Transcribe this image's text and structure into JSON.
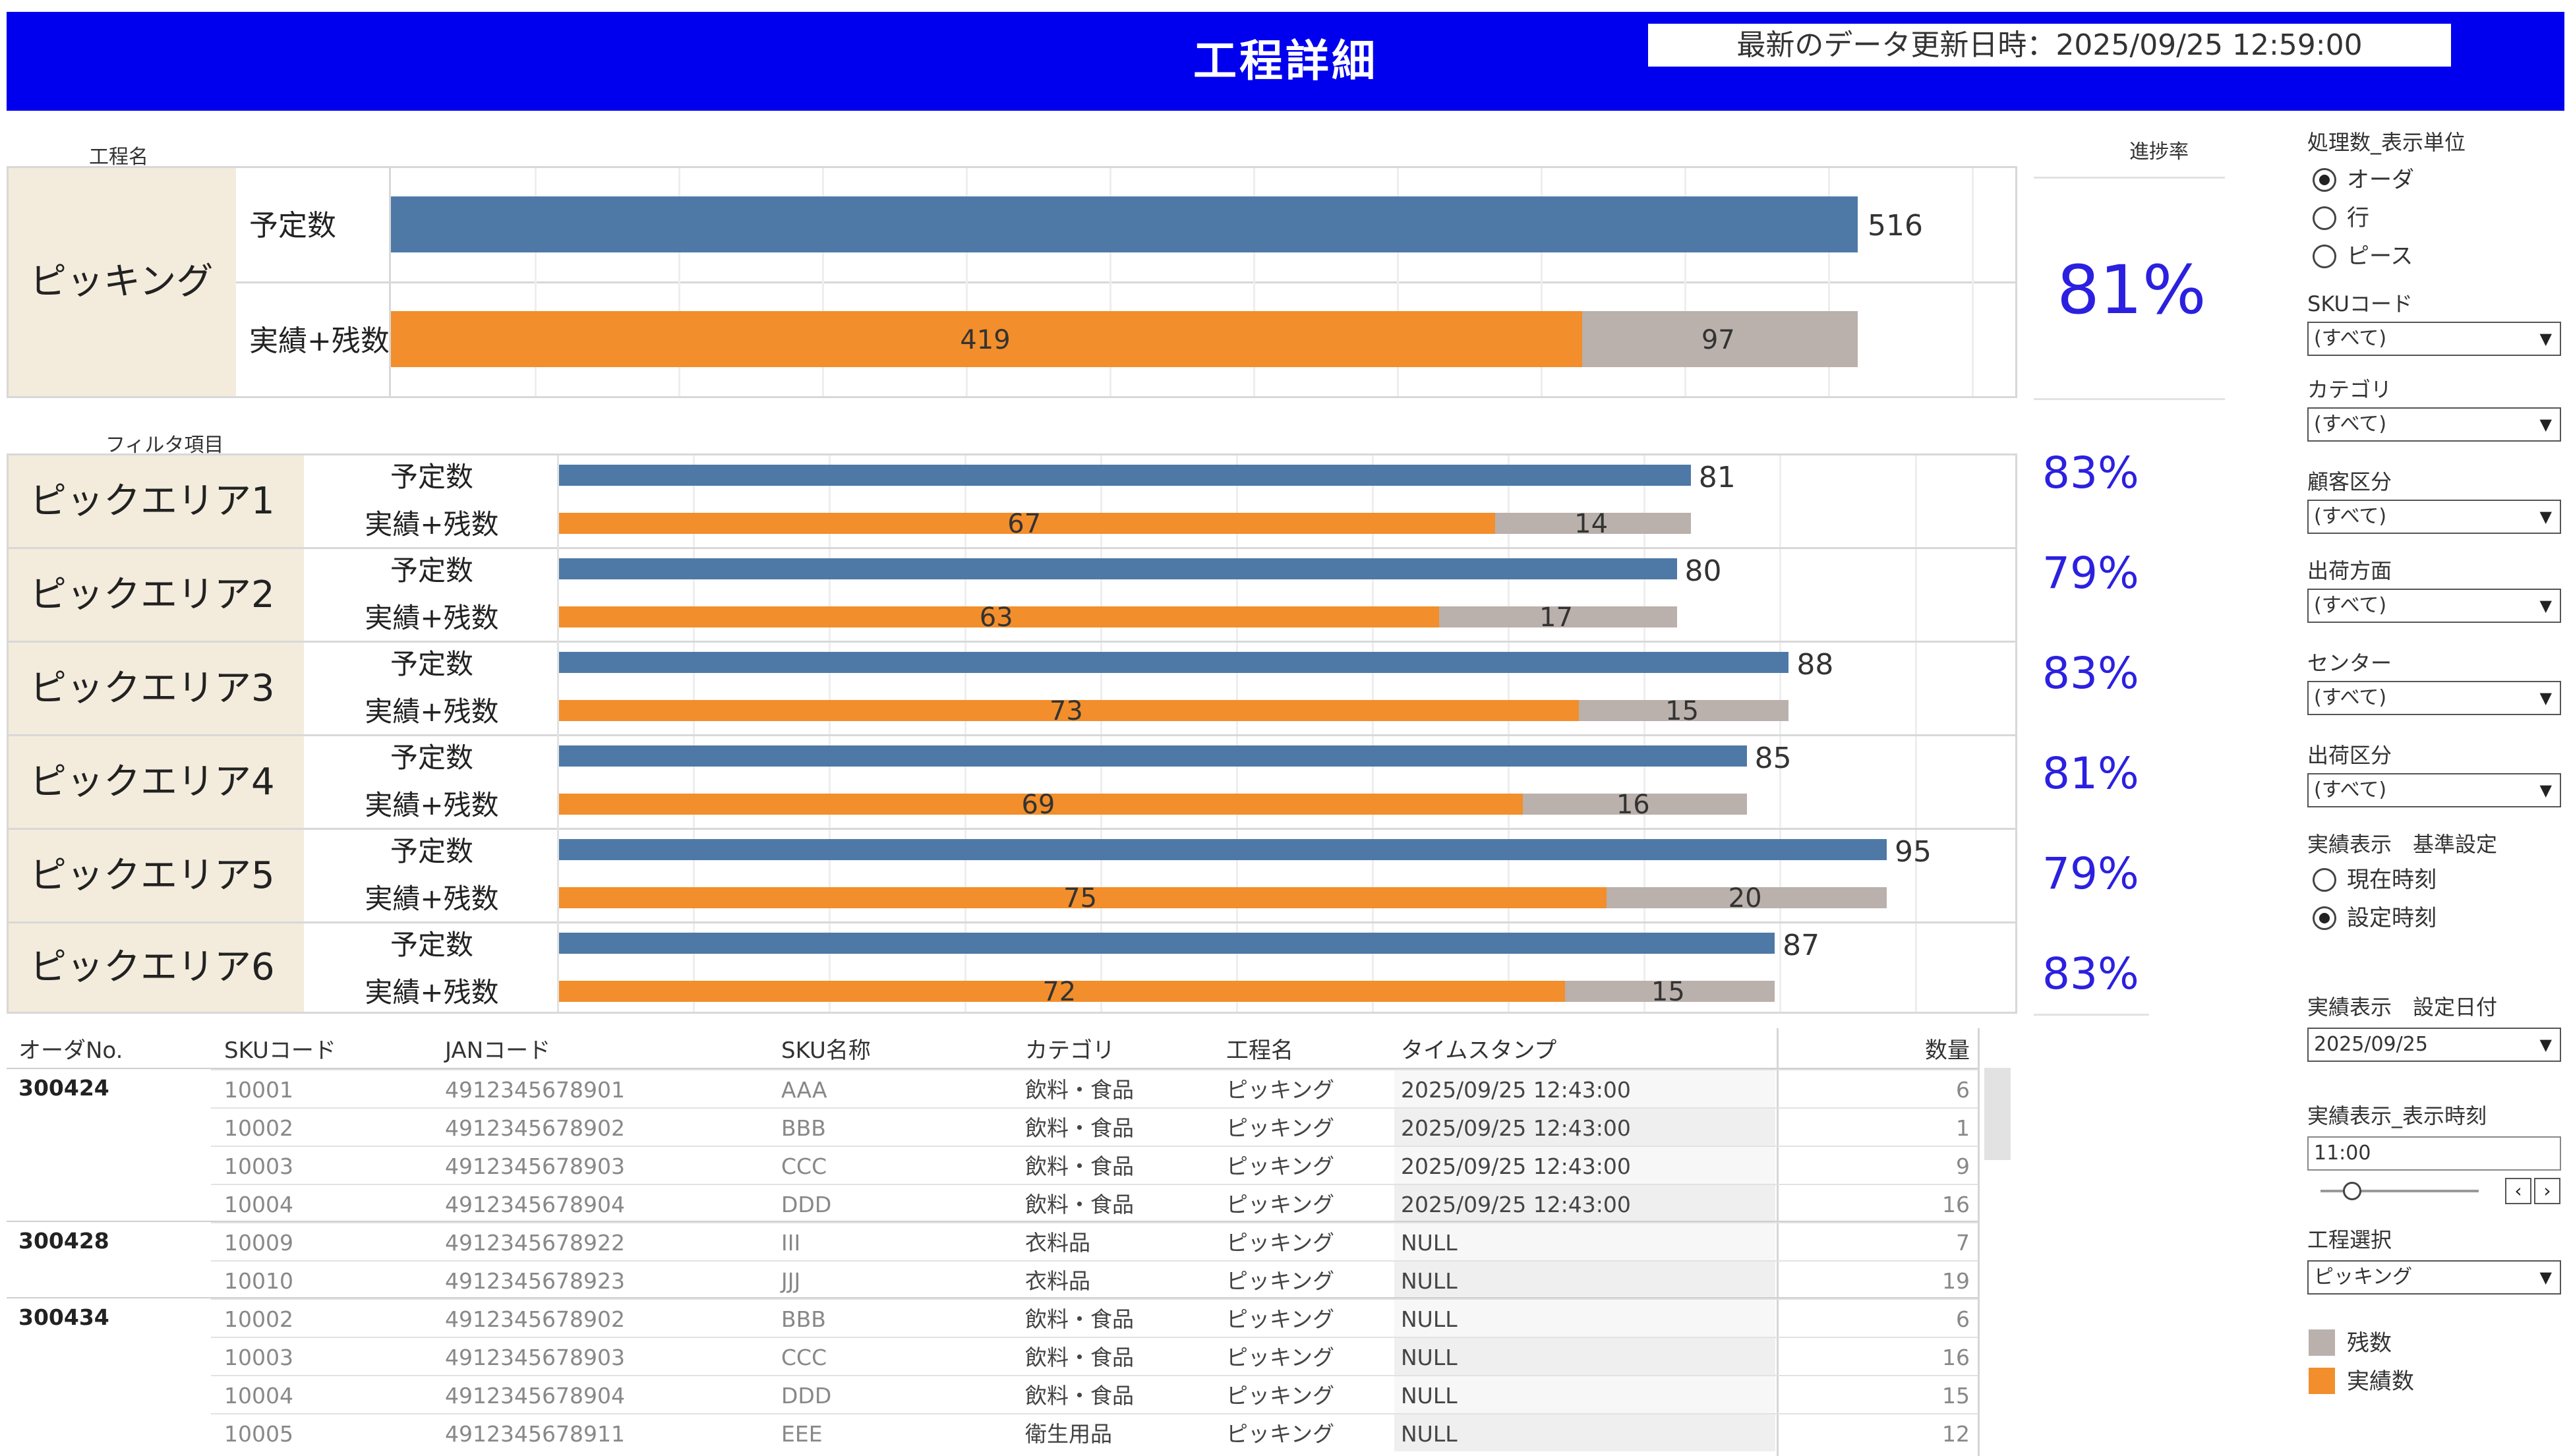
{
  "header": {
    "title": "工程詳細",
    "last_update": "最新のデータ更新日時：2025/09/25 12:59:00"
  },
  "process_section": {
    "label": "工程名",
    "progress_label": "進捗率",
    "name": "ピッキング",
    "planned_label": "予定数",
    "actual_label": "実績+残数",
    "planned": 516,
    "actual": 419,
    "remaining": 97,
    "progress": "81%"
  },
  "filter_section": {
    "label": "フィルタ項目",
    "planned_label": "予定数",
    "actual_label": "実績+残数",
    "areas": [
      {
        "name": "ピックエリア1",
        "planned": 81,
        "actual": 67,
        "remaining": 14,
        "progress": "83%"
      },
      {
        "name": "ピックエリア2",
        "planned": 80,
        "actual": 63,
        "remaining": 17,
        "progress": "79%"
      },
      {
        "name": "ピックエリア3",
        "planned": 88,
        "actual": 73,
        "remaining": 15,
        "progress": "83%"
      },
      {
        "name": "ピックエリア4",
        "planned": 85,
        "actual": 69,
        "remaining": 16,
        "progress": "81%"
      },
      {
        "name": "ピックエリア5",
        "planned": 95,
        "actual": 75,
        "remaining": 20,
        "progress": "79%"
      },
      {
        "name": "ピックエリア6",
        "planned": 87,
        "actual": 72,
        "remaining": 15,
        "progress": "83%"
      }
    ]
  },
  "table": {
    "columns": [
      "オーダNo.",
      "SKUコード",
      "JANコード",
      "SKU名称",
      "カテゴリ",
      "工程名",
      "タイムスタンプ",
      "数量"
    ],
    "groups": [
      {
        "order": "300424",
        "rows": [
          [
            "10001",
            "4912345678901",
            "AAA",
            "飲料・食品",
            "ピッキング",
            "2025/09/25 12:43:00",
            "6"
          ],
          [
            "10002",
            "4912345678902",
            "BBB",
            "飲料・食品",
            "ピッキング",
            "2025/09/25 12:43:00",
            "1"
          ],
          [
            "10003",
            "4912345678903",
            "CCC",
            "飲料・食品",
            "ピッキング",
            "2025/09/25 12:43:00",
            "9"
          ],
          [
            "10004",
            "4912345678904",
            "DDD",
            "飲料・食品",
            "ピッキング",
            "2025/09/25 12:43:00",
            "16"
          ]
        ]
      },
      {
        "order": "300428",
        "rows": [
          [
            "10009",
            "4912345678922",
            "III",
            "衣料品",
            "ピッキング",
            "NULL",
            "7"
          ],
          [
            "10010",
            "4912345678923",
            "JJJ",
            "衣料品",
            "ピッキング",
            "NULL",
            "19"
          ]
        ]
      },
      {
        "order": "300434",
        "rows": [
          [
            "10002",
            "4912345678902",
            "BBB",
            "飲料・食品",
            "ピッキング",
            "NULL",
            "6"
          ],
          [
            "10003",
            "4912345678903",
            "CCC",
            "飲料・食品",
            "ピッキング",
            "NULL",
            "16"
          ],
          [
            "10004",
            "4912345678904",
            "DDD",
            "飲料・食品",
            "ピッキング",
            "NULL",
            "15"
          ],
          [
            "10005",
            "4912345678911",
            "EEE",
            "衛生用品",
            "ピッキング",
            "NULL",
            "12"
          ]
        ]
      }
    ]
  },
  "filters": {
    "unit_label": "処理数_表示単位",
    "unit_options": [
      "オーダ",
      "行",
      "ピース"
    ],
    "unit_selected": 0,
    "dropdowns": [
      {
        "label": "SKUコード",
        "value": "(すべて)"
      },
      {
        "label": "カテゴリ",
        "value": "(すべて)"
      },
      {
        "label": "顧客区分",
        "value": "(すべて)"
      },
      {
        "label": "出荷方面",
        "value": "(すべて)"
      },
      {
        "label": "センター",
        "value": "(すべて)"
      },
      {
        "label": "出荷区分",
        "value": "(すべて)"
      }
    ],
    "basis_label": "実績表示　基準設定",
    "basis_options": [
      "現在時刻",
      "設定時刻"
    ],
    "basis_selected": 1,
    "date_label": "実績表示　設定日付",
    "date_value": "2025/09/25",
    "time_label": "実績表示_表示時刻",
    "time_value": "11:00",
    "slider_position": 0.1,
    "process_label": "工程選択",
    "process_value": "ピッキング",
    "legend": [
      {
        "label": "残数",
        "color": "#bab0ac"
      },
      {
        "label": "実績数",
        "color": "#f28e2b"
      }
    ]
  },
  "colors": {
    "header": "#0000ee",
    "planned": "#4e79a7",
    "actual": "#f28e2b",
    "remaining": "#bab0ac",
    "progress_text": "#2b20e0"
  }
}
